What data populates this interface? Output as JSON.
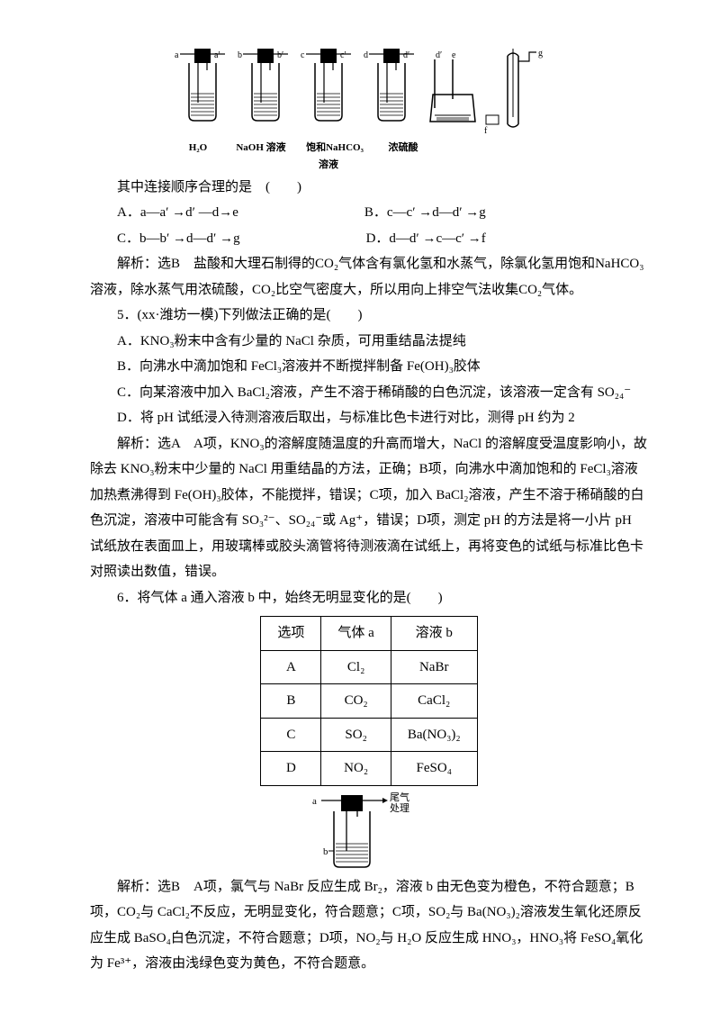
{
  "apparatus": {
    "bottles": [
      {
        "in": "a",
        "out": "a′",
        "label": "H₂O"
      },
      {
        "in": "b",
        "out": "b′",
        "label": "NaOH 溶液"
      },
      {
        "in": "c",
        "out": "c′",
        "label": "饱和NaHCO₃"
      },
      {
        "in": "d",
        "out": "d′",
        "label": "浓硫酸"
      }
    ],
    "label_row2": "溶液",
    "e_label": "e",
    "f_label": "f",
    "g_label": "g"
  },
  "q4": {
    "stem": "其中连接顺序合理的是　(　　)",
    "A": "A．a—a′ →d′ —d→e",
    "B": "B．c—c′ →d—d′ →g",
    "C": "C．b—b′ →d—d′ →g",
    "D": "D．d—d′ →c—c′ →f",
    "analysis": "解析：选B　盐酸和大理石制得的CO₂气体含有氯化氢和水蒸气，除氯化氢用饱和NaHCO₃溶液，除水蒸气用浓硫酸，CO₂比空气密度大，所以用向上排空气法收集CO₂气体。"
  },
  "q5": {
    "stem": "5．(xx·潍坊一模)下列做法正确的是(　　)",
    "A": "A．KNO₃粉末中含有少量的 NaCl 杂质，可用重结晶法提纯",
    "B": "B．向沸水中滴加饱和 FeCl₃溶液并不断搅拌制备 Fe(OH)₃胶体",
    "C": "C．向某溶液中加入 BaCl₂溶液，产生不溶于稀硝酸的白色沉淀，该溶液一定含有 SO₂₄⁻",
    "D": "D．将 pH 试纸浸入待测溶液后取出，与标准比色卡进行对比，测得 pH 约为 2",
    "analysis": "解析：选A　A项，KNO₃的溶解度随温度的升高而增大，NaCl 的溶解度受温度影响小，故除去 KNO₃粉末中少量的 NaCl 用重结晶的方法，正确；B项，向沸水中滴加饱和的 FeCl₃溶液加热煮沸得到 Fe(OH)₃胶体，不能搅拌，错误；C项，加入 BaCl₂溶液，产生不溶于稀硝酸的白色沉淀，溶液中可能含有 SO₃²⁻、SO₂₄⁻或 Ag⁺，错误；D项，测定 pH 的方法是将一小片 pH 试纸放在表面皿上，用玻璃棒或胶头滴管将待测液滴在试纸上，再将变色的试纸与标准比色卡对照读出数值，错误。"
  },
  "q6": {
    "stem": "6．将气体 a 通入溶液 b 中，始终无明显变化的是(　　)",
    "table": {
      "head": [
        "选项",
        "气体 a",
        "溶液 b"
      ],
      "rows": [
        [
          "A",
          "Cl₂",
          "NaBr"
        ],
        [
          "B",
          "CO₂",
          "CaCl₂"
        ],
        [
          "C",
          "SO₂",
          "Ba(NO₃)₂"
        ],
        [
          "D",
          "NO₂",
          "FeSO₄"
        ]
      ]
    },
    "diagram": {
      "a": "a",
      "tail": "尾气\n处理",
      "b": "b"
    },
    "analysis": "解析：选B　A项，氯气与 NaBr 反应生成 Br₂，溶液 b 由无色变为橙色，不符合题意；B项，CO₂与 CaCl₂不反应，无明显变化，符合题意；C项，SO₂与 Ba(NO₃)₂溶液发生氧化还原反应生成 BaSO₄白色沉淀，不符合题意；D项，NO₂与 H₂O 反应生成 HNO₃，HNO₃将 FeSO₄氧化为 Fe³⁺，溶液由浅绿色变为黄色，不符合题意。"
  }
}
